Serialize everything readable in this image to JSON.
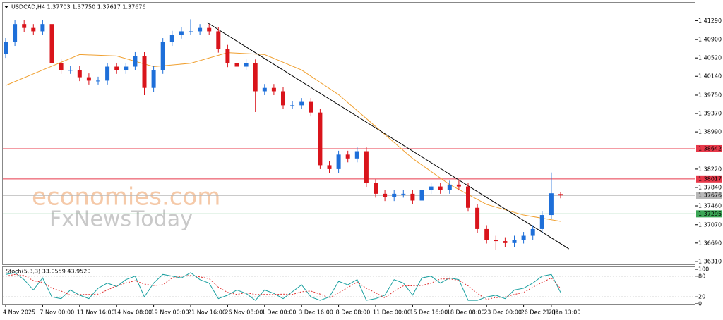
{
  "chart_data": {
    "type": "candlestick",
    "title": "USDCAD,H4  1.37703 1.37750 1.37617 1.37676",
    "categories": [
      "4 Nov 2025",
      null,
      null,
      null,
      "7 Nov 00:00",
      null,
      null,
      null,
      "11 Nov 16:00",
      null,
      null,
      null,
      "14 Nov 08:00",
      null,
      null,
      null,
      "19 Nov 00:00",
      null,
      null,
      null,
      "21 Nov 16:00",
      null,
      null,
      null,
      "26 Nov 08:00",
      null,
      null,
      null,
      "1 Dec 00:00",
      null,
      null,
      null,
      "3 Dec 16:00",
      null,
      null,
      null,
      "8 Dec 08:00",
      null,
      null,
      null,
      "11 Dec 00:00",
      null,
      null,
      null,
      "15 Dec 16:00",
      null,
      null,
      null,
      "18 Dec 08:00",
      null,
      null,
      null,
      "23 Dec 00:00",
      null,
      null,
      null,
      "26 Dec 21:00",
      null,
      null,
      "2 Jan 13:00",
      null
    ],
    "open": [
      1.406,
      1.4085,
      1.4122,
      1.4114,
      1.4107,
      1.4122,
      1.4041,
      1.4027,
      1.4027,
      1.4012,
      1.4005,
      1.4005,
      1.4034,
      1.4027,
      1.4034,
      1.4056,
      1.399,
      1.4027,
      1.4085,
      1.41,
      1.4107,
      1.4107,
      1.4114,
      1.4107,
      1.4071,
      1.4041,
      1.4034,
      1.4041,
      1.3983,
      1.399,
      1.3983,
      1.3954,
      1.3954,
      1.3961,
      1.3939,
      1.383,
      1.3822,
      1.3852,
      1.3844,
      1.3859,
      1.3793,
      1.3771,
      1.3764,
      1.3771,
      1.3771,
      1.3757,
      1.3779,
      1.3786,
      1.3779,
      1.379,
      1.3786,
      1.3742,
      1.3698,
      1.3676,
      1.3673,
      1.3669,
      1.3676,
      1.3684,
      1.3698,
      1.3727,
      1.37703
    ],
    "high": [
      1.4093,
      1.413,
      1.413,
      1.4122,
      1.413,
      1.413,
      1.4049,
      1.4035,
      1.4035,
      1.402,
      1.4013,
      1.4042,
      1.4042,
      1.4042,
      1.4064,
      1.4064,
      1.4035,
      1.4093,
      1.4108,
      1.4115,
      1.4132,
      1.4122,
      1.4122,
      1.4115,
      1.4079,
      1.4049,
      1.4049,
      1.4049,
      1.3998,
      1.3998,
      1.3991,
      1.3962,
      1.3969,
      1.3969,
      1.3947,
      1.3838,
      1.386,
      1.386,
      1.3867,
      1.3867,
      1.3801,
      1.3779,
      1.3779,
      1.3779,
      1.3779,
      1.3787,
      1.3794,
      1.3794,
      1.3798,
      1.38,
      1.3794,
      1.375,
      1.3706,
      1.3684,
      1.3681,
      1.3684,
      1.3692,
      1.3706,
      1.3735,
      1.3815,
      1.3775
    ],
    "low": [
      1.4052,
      1.4077,
      1.4106,
      1.4099,
      1.4099,
      1.4033,
      1.4019,
      1.4019,
      1.4004,
      1.3997,
      1.3997,
      1.3997,
      1.4019,
      1.4019,
      1.4026,
      1.3975,
      1.3982,
      1.4019,
      1.4077,
      1.4092,
      1.4099,
      1.4099,
      1.4099,
      1.4063,
      1.4033,
      1.4026,
      1.4026,
      1.394,
      1.3975,
      1.3975,
      1.3946,
      1.3946,
      1.3946,
      1.3931,
      1.3822,
      1.3814,
      1.3814,
      1.3836,
      1.3836,
      1.3785,
      1.3763,
      1.3756,
      1.3756,
      1.3763,
      1.3749,
      1.3749,
      1.3771,
      1.3771,
      1.3771,
      1.3778,
      1.3734,
      1.369,
      1.3668,
      1.3655,
      1.3661,
      1.3661,
      1.3668,
      1.3676,
      1.369,
      1.3719,
      1.37617
    ],
    "close": [
      1.4085,
      1.4122,
      1.4114,
      1.4107,
      1.4122,
      1.4041,
      1.4027,
      1.4027,
      1.4012,
      1.4005,
      1.4005,
      1.4034,
      1.4027,
      1.4034,
      1.4056,
      1.399,
      1.4027,
      1.4085,
      1.41,
      1.4107,
      1.4107,
      1.4114,
      1.4107,
      1.4071,
      1.4041,
      1.4034,
      1.4041,
      1.3983,
      1.399,
      1.3983,
      1.3954,
      1.3954,
      1.3961,
      1.3939,
      1.383,
      1.3822,
      1.3852,
      1.3844,
      1.3859,
      1.3793,
      1.3771,
      1.3764,
      1.3771,
      1.3771,
      1.3757,
      1.3779,
      1.3786,
      1.3779,
      1.379,
      1.3786,
      1.3742,
      1.3698,
      1.3676,
      1.3673,
      1.3669,
      1.3676,
      1.3684,
      1.3698,
      1.3727,
      1.3772,
      1.37676
    ],
    "up_color": "#1e6fd9",
    "down_color": "#d9141b",
    "ylim": [
      1.3625,
      1.4166
    ],
    "yticks": [
      {
        "value": 1.4129,
        "label": "1.41290"
      },
      {
        "value": 1.409,
        "label": "1.40900"
      },
      {
        "value": 1.4052,
        "label": "1.40520"
      },
      {
        "value": 1.4014,
        "label": "1.40140"
      },
      {
        "value": 1.3975,
        "label": "1.39750"
      },
      {
        "value": 1.3937,
        "label": "1.39370"
      },
      {
        "value": 1.3899,
        "label": "1.38990"
      },
      {
        "value": 1.3822,
        "label": "1.38220"
      },
      {
        "value": 1.3784,
        "label": "1.37840"
      },
      {
        "value": 1.3746,
        "label": "1.37460"
      },
      {
        "value": 1.3707,
        "label": "1.37070"
      },
      {
        "value": 1.3669,
        "label": "1.36690"
      },
      {
        "value": 1.3631,
        "label": "1.36310"
      }
    ],
    "ma": {
      "color": "#f0a030",
      "x": [
        0,
        4,
        8,
        12,
        16,
        20,
        24,
        28,
        32,
        36,
        40,
        44,
        48,
        52,
        56,
        60
      ],
      "values": [
        1.3995,
        1.4027,
        1.4059,
        1.4056,
        1.4034,
        1.4041,
        1.4063,
        1.4059,
        1.4027,
        1.3976,
        1.391,
        1.3844,
        1.379,
        1.3749,
        1.3727,
        1.3714
      ]
    },
    "trendline": {
      "color": "#000000",
      "x": [
        21.8,
        60.9
      ],
      "y": [
        1.4125,
        1.3657
      ]
    },
    "hlines": [
      {
        "value": 1.38642,
        "color": "#e8394a"
      },
      {
        "value": 1.38017,
        "color": "#e8394a"
      },
      {
        "value": 1.37676,
        "color": "#b8b8b8"
      },
      {
        "value": 1.37295,
        "color": "#3aa655"
      }
    ],
    "watermark": [
      "economies.com",
      "FxNewsToday"
    ],
    "stoch": {
      "label": "Stoch(5,3,3) 33.0559 43.9520",
      "k_color": "#1aa0a0",
      "d_color": "#e03030",
      "k": [
        85,
        90,
        70,
        40,
        75,
        20,
        15,
        40,
        25,
        15,
        45,
        60,
        50,
        70,
        80,
        20,
        60,
        85,
        80,
        75,
        90,
        70,
        60,
        15,
        25,
        40,
        30,
        10,
        40,
        30,
        15,
        35,
        55,
        20,
        10,
        20,
        65,
        55,
        70,
        10,
        15,
        25,
        70,
        60,
        25,
        75,
        80,
        60,
        75,
        70,
        10,
        10,
        20,
        25,
        15,
        40,
        45,
        60,
        80,
        85,
        33.0559
      ],
      "d": [
        80,
        85,
        82,
        67,
        62,
        45,
        37,
        25,
        27,
        27,
        28,
        40,
        52,
        60,
        67,
        57,
        53,
        55,
        75,
        80,
        82,
        78,
        73,
        48,
        33,
        27,
        32,
        27,
        27,
        27,
        28,
        27,
        35,
        37,
        28,
        17,
        32,
        47,
        63,
        45,
        32,
        17,
        37,
        52,
        52,
        53,
        60,
        72,
        72,
        68,
        52,
        30,
        13,
        18,
        20,
        27,
        33,
        48,
        62,
        75,
        43.952
      ],
      "ylim": [
        0,
        100
      ],
      "yticks": [
        100,
        80,
        20,
        0
      ],
      "levels": [
        80,
        20
      ]
    }
  }
}
